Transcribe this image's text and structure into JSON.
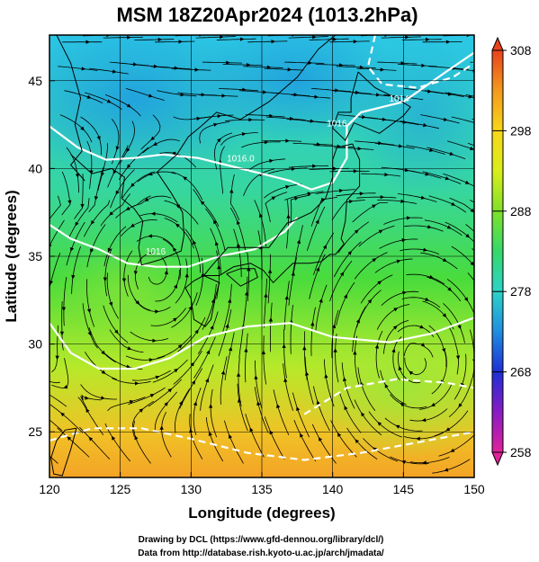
{
  "chart_data": {
    "type": "heatmap",
    "title": "MSM 18Z20Apr2024 (1013.2hPa)",
    "xlabel": "Longitude (degrees)",
    "ylabel": "Latitude  (degrees)",
    "xlim": [
      120,
      150
    ],
    "ylim": [
      22.4,
      47.6
    ],
    "x_ticks": [
      120,
      125,
      130,
      135,
      140,
      145,
      150
    ],
    "y_ticks": [
      25,
      30,
      35,
      40,
      45
    ],
    "grid": true,
    "overlays": [
      "streamlines",
      "isobars",
      "coastlines"
    ],
    "colorbar": {
      "min": 258,
      "max": 308,
      "ticks": [
        258,
        268,
        278,
        288,
        298,
        308
      ],
      "colors": [
        "#e0229a",
        "#8a1bc4",
        "#1d2fd6",
        "#1f8de0",
        "#2bd3c8",
        "#35d96a",
        "#7fe12a",
        "#d9ee1a",
        "#f7d61a",
        "#f49a1c",
        "#e8421c"
      ]
    },
    "isobar_labels": [
      {
        "text": "1016.0",
        "lon": 133.5,
        "lat": 40.4
      },
      {
        "text": "1016",
        "lon": 127.5,
        "lat": 35.1
      },
      {
        "text": "1016",
        "lon": 140.3,
        "lat": 42.4
      },
      {
        "text": "1014",
        "lon": 144.7,
        "lat": 43.8
      }
    ]
  },
  "credits": {
    "line1": "Drawing by DCL (https://www.gfd-dennou.org/library/dcl/)",
    "line2": "Data from http://database.rish.kyoto-u.ac.jp/arch/jmadata/"
  }
}
